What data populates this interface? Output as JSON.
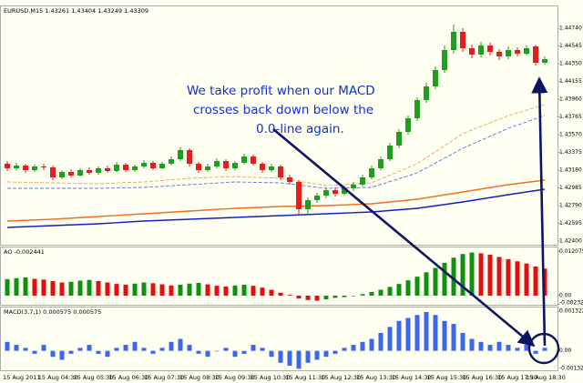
{
  "chart_data": [
    {
      "type": "candlestick",
      "title": "EURUSD,M15  1.43261 1.43404 1.43249 1.43309",
      "open": [
        1.4325,
        1.432,
        1.4323,
        1.4318,
        1.4322,
        1.4321,
        1.431,
        1.4316,
        1.4312,
        1.4318,
        1.4315,
        1.432,
        1.4317,
        1.4324,
        1.4318,
        1.4322,
        1.4326,
        1.432,
        1.4325,
        1.433,
        1.434,
        1.4325,
        1.4318,
        1.4322,
        1.4328,
        1.432,
        1.4326,
        1.4333,
        1.4325,
        1.4318,
        1.4322,
        1.431,
        1.4305,
        1.4275,
        1.4285,
        1.429,
        1.4296,
        1.4292,
        1.4298,
        1.4302,
        1.431,
        1.432,
        1.433,
        1.4345,
        1.436,
        1.4375,
        1.4395,
        1.441,
        1.4428,
        1.445,
        1.447,
        1.4452,
        1.4445,
        1.4455,
        1.4448,
        1.4443,
        1.445,
        1.4446,
        1.4454,
        1.4436
      ],
      "high": [
        1.4328,
        1.4326,
        1.4325,
        1.4324,
        1.4325,
        1.4323,
        1.4318,
        1.4319,
        1.432,
        1.4321,
        1.4322,
        1.4323,
        1.4327,
        1.4326,
        1.4324,
        1.4329,
        1.4328,
        1.4327,
        1.4333,
        1.4343,
        1.4342,
        1.4327,
        1.4325,
        1.4331,
        1.433,
        1.4328,
        1.4336,
        1.4335,
        1.4327,
        1.4325,
        1.4324,
        1.4313,
        1.4307,
        1.4288,
        1.4293,
        1.4299,
        1.4299,
        1.4301,
        1.4305,
        1.4313,
        1.4323,
        1.4333,
        1.4348,
        1.4363,
        1.4378,
        1.4398,
        1.4414,
        1.4432,
        1.4455,
        1.4478,
        1.4474,
        1.4456,
        1.4459,
        1.4458,
        1.4451,
        1.4454,
        1.4453,
        1.4455,
        1.4456,
        1.4443
      ],
      "low": [
        1.4317,
        1.4318,
        1.4315,
        1.4316,
        1.4318,
        1.4307,
        1.4308,
        1.431,
        1.4311,
        1.4313,
        1.4313,
        1.4315,
        1.4316,
        1.4316,
        1.4316,
        1.432,
        1.4318,
        1.4319,
        1.4323,
        1.4328,
        1.4322,
        1.4315,
        1.4316,
        1.432,
        1.4317,
        1.4318,
        1.4324,
        1.4323,
        1.4315,
        1.4316,
        1.4307,
        1.4302,
        1.4268,
        1.427,
        1.4282,
        1.4287,
        1.4289,
        1.429,
        1.4295,
        1.43,
        1.4308,
        1.4318,
        1.4328,
        1.4342,
        1.4357,
        1.4372,
        1.4392,
        1.4407,
        1.4425,
        1.4446,
        1.4448,
        1.4441,
        1.4442,
        1.4444,
        1.4439,
        1.444,
        1.4443,
        1.4444,
        1.4433,
        1.4434
      ],
      "close": [
        1.432,
        1.4323,
        1.4318,
        1.4322,
        1.4321,
        1.431,
        1.4316,
        1.4312,
        1.4318,
        1.4315,
        1.432,
        1.4317,
        1.4324,
        1.4318,
        1.4322,
        1.4326,
        1.432,
        1.4325,
        1.433,
        1.434,
        1.4325,
        1.4318,
        1.4322,
        1.4328,
        1.432,
        1.4326,
        1.4333,
        1.4325,
        1.4318,
        1.4322,
        1.431,
        1.4305,
        1.4275,
        1.4285,
        1.429,
        1.4296,
        1.4292,
        1.4298,
        1.4302,
        1.431,
        1.432,
        1.433,
        1.4345,
        1.436,
        1.4375,
        1.4395,
        1.441,
        1.4428,
        1.445,
        1.447,
        1.4452,
        1.4445,
        1.4455,
        1.4448,
        1.4443,
        1.445,
        1.4446,
        1.4452,
        1.4436,
        1.444
      ],
      "up_color": "#1e9e1e",
      "down_color": "#e41e1e",
      "lines": [
        {
          "color": "#f0a060",
          "dash": true,
          "x": [
            0,
            5,
            10,
            15,
            20,
            25,
            30,
            35,
            40,
            45,
            50,
            55,
            59
          ],
          "values": [
            1.4305,
            1.4304,
            1.4303,
            1.4305,
            1.4309,
            1.4311,
            1.4309,
            1.4301,
            1.4304,
            1.4325,
            1.4358,
            1.4378,
            1.439
          ]
        },
        {
          "color": "#6070e0",
          "dash": true,
          "x": [
            0,
            5,
            10,
            15,
            20,
            25,
            30,
            35,
            40,
            45,
            50,
            55,
            59
          ],
          "values": [
            1.4298,
            1.4298,
            1.4298,
            1.4299,
            1.4302,
            1.4305,
            1.4304,
            1.4298,
            1.4299,
            1.4315,
            1.4342,
            1.4364,
            1.4378
          ]
        },
        {
          "color": "#f07020",
          "dash": false,
          "x": [
            0,
            5,
            10,
            15,
            20,
            25,
            30,
            35,
            40,
            45,
            50,
            55,
            59
          ],
          "values": [
            1.4262,
            1.4264,
            1.4267,
            1.427,
            1.4273,
            1.4276,
            1.4278,
            1.4279,
            1.4281,
            1.4286,
            1.4294,
            1.4302,
            1.4307
          ]
        },
        {
          "color": "#1020c0",
          "dash": false,
          "x": [
            0,
            5,
            10,
            15,
            20,
            25,
            30,
            35,
            40,
            45,
            50,
            55,
            59
          ],
          "values": [
            1.4255,
            1.4257,
            1.4259,
            1.4262,
            1.4264,
            1.4266,
            1.4268,
            1.427,
            1.4272,
            1.4276,
            1.4283,
            1.4291,
            1.4297
          ]
        }
      ],
      "ylim": [
        1.4236,
        1.4498
      ],
      "yticks": [
        {
          "value": 1.424,
          "label": "1.42400"
        },
        {
          "value": 1.42595,
          "label": "1.42595"
        },
        {
          "value": 1.4279,
          "label": "1.42790"
        },
        {
          "value": 1.42985,
          "label": "1.42985"
        },
        {
          "value": 1.4318,
          "label": "1.43180"
        },
        {
          "value": 1.43375,
          "label": "1.43375"
        },
        {
          "value": 1.4357,
          "label": "1.43570"
        },
        {
          "value": 1.43765,
          "label": "1.43765"
        },
        {
          "value": 1.4396,
          "label": "1.43960"
        },
        {
          "value": 1.44155,
          "label": "1.44155"
        },
        {
          "value": 1.4435,
          "label": "1.44350"
        },
        {
          "value": 1.44545,
          "label": "1.44545"
        },
        {
          "value": 1.4474,
          "label": "1.44740"
        }
      ],
      "annotation": [
        "We take profit when our MACD",
        "crosses back down below the",
        "0.0-line again."
      ],
      "annotation_color": "#1030d0"
    },
    {
      "type": "bar",
      "title": "AO -0.002441",
      "values": [
        0.0045,
        0.0048,
        0.005,
        0.0046,
        0.0044,
        0.004,
        0.0036,
        0.0038,
        0.0041,
        0.0043,
        0.004,
        0.0036,
        0.0032,
        0.003,
        0.0033,
        0.0036,
        0.0034,
        0.0031,
        0.0028,
        0.003,
        0.0033,
        0.0035,
        0.0031,
        0.0027,
        0.0025,
        0.0028,
        0.003,
        0.0027,
        0.0022,
        0.0016,
        0.0008,
        0.0002,
        -0.0008,
        -0.0012,
        -0.0014,
        -0.001,
        -0.0006,
        -0.0004,
        0.0,
        0.0004,
        0.001,
        0.0016,
        0.0024,
        0.0032,
        0.0042,
        0.0052,
        0.0064,
        0.0076,
        0.009,
        0.0104,
        0.0114,
        0.0118,
        0.0116,
        0.0112,
        0.0106,
        0.01,
        0.0094,
        0.0088,
        0.008,
        0.0074
      ],
      "up_color": "#109010",
      "down_color": "#e01010",
      "ylim": [
        -0.0025,
        0.0132
      ],
      "yticks": [
        0.012075,
        {
          "value": 0,
          "label": "0.00"
        },
        -0.00232
      ]
    },
    {
      "type": "bar",
      "title": "MACD(3,7,1) 0.000575 0.000575",
      "values": [
        0.0003,
        0.0002,
        0.0001,
        -0.0001,
        0.0002,
        -0.0002,
        -0.0003,
        -0.0001,
        0.0001,
        0.0002,
        -0.0001,
        -0.0002,
        0.0001,
        0.0002,
        0.0003,
        0.0001,
        -0.0001,
        0.0001,
        0.0003,
        0.0004,
        0.0002,
        -0.0001,
        -0.0002,
        0.0,
        0.0001,
        -0.0002,
        -0.0001,
        0.0002,
        0.0001,
        -0.0002,
        -0.0004,
        -0.0005,
        -0.0006,
        -0.0004,
        -0.0003,
        -0.0002,
        -0.0001,
        0.0001,
        0.0002,
        0.0003,
        0.0004,
        0.0006,
        0.0008,
        0.001,
        0.0011,
        0.0012,
        0.0013,
        0.0012,
        0.001,
        0.0009,
        0.0006,
        0.0004,
        0.0003,
        0.0002,
        0.0003,
        0.0002,
        0.0001,
        0.0002,
        -0.0001,
        0.0001
      ],
      "color": "#3a66f0",
      "ylim": [
        -0.00065,
        0.00145
      ],
      "yticks": [
        0.001322,
        {
          "value": 0,
          "label": "0.00"
        },
        -0.00132
      ],
      "xtick_labels": [
        "15 Aug 2011",
        "15 Aug 04:30",
        "15 Aug 05:30",
        "15 Aug 06:30",
        "15 Aug 07:30",
        "15 Aug 08:30",
        "15 Aug 09:30",
        "15 Aug 10:30",
        "15 Aug 11:30",
        "15 Aug 12:30",
        "15 Aug 13:30",
        "15 Aug 14:30",
        "15 Aug 15:30",
        "15 Aug 16:30",
        "15 Aug 17:30",
        "15 Aug 18:30"
      ]
    }
  ]
}
